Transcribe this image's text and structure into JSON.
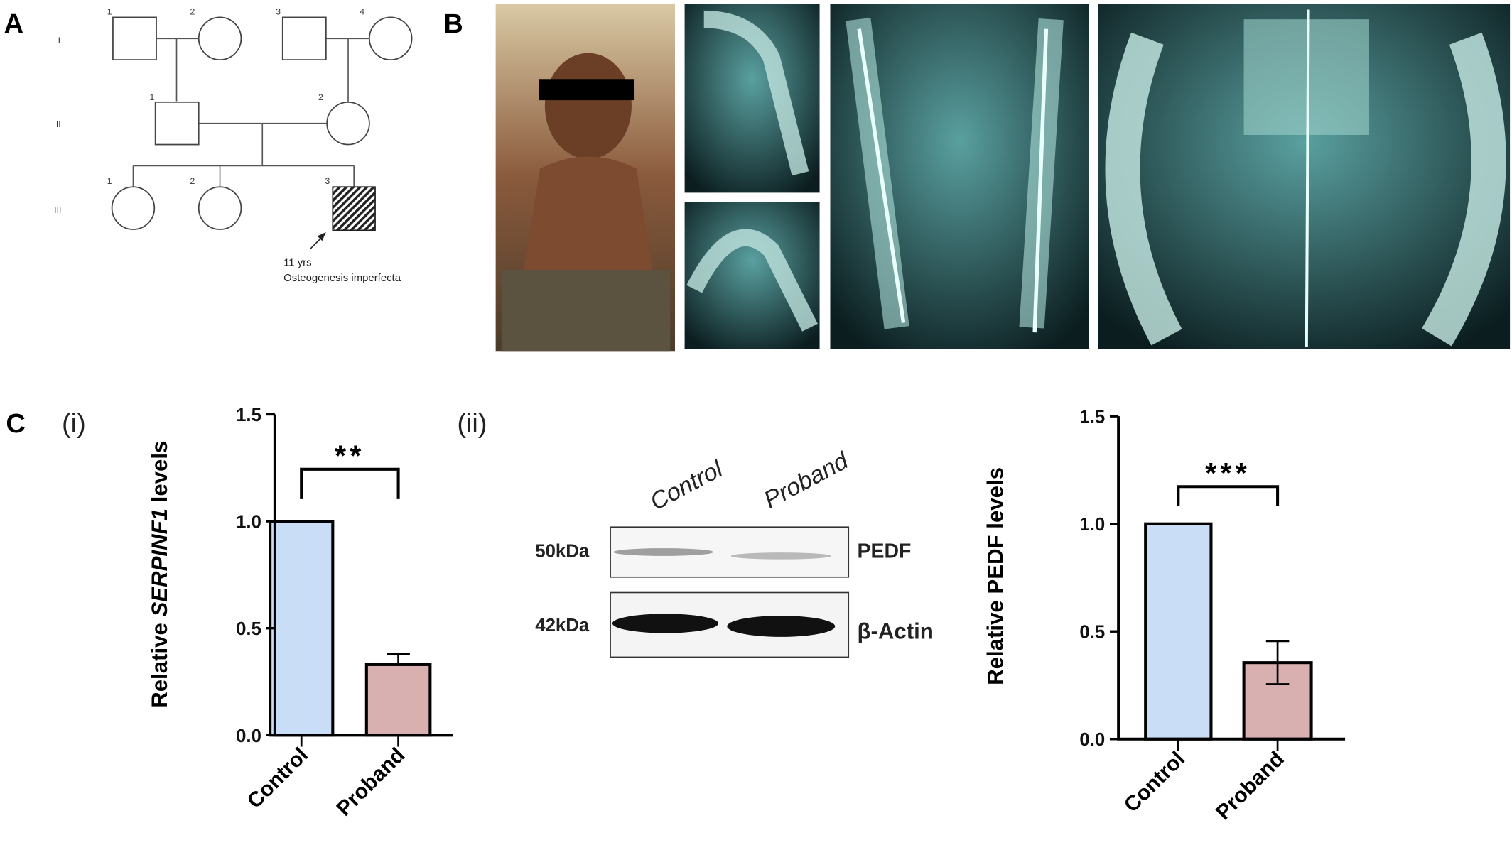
{
  "panels": {
    "a": "A",
    "b": "B",
    "c": "C",
    "c_i": "(i)",
    "c_ii": "(ii)"
  },
  "pedigree": {
    "generations": [
      "I",
      "II",
      "III"
    ],
    "individual_numbers": {
      "gen1": [
        "1",
        "2",
        "3",
        "4"
      ],
      "gen2": [
        "1",
        "2"
      ],
      "gen3": [
        "1",
        "2",
        "3"
      ]
    },
    "proband_age": "11 yrs",
    "proband_diagnosis": "Osteogenesis imperfecta"
  },
  "western_blot": {
    "lanes": [
      "Control",
      "Proband"
    ],
    "rows": [
      {
        "marker": "50kDa",
        "protein": "PEDF"
      },
      {
        "marker": "42kDa",
        "protein": "β-Actin"
      }
    ]
  },
  "colors": {
    "control": "#c9ddf6",
    "proband": "#d8b0b0"
  },
  "chart_data": [
    {
      "type": "bar",
      "title": "",
      "ylabel_prefix": "Relative ",
      "ylabel_italic": "SERPINF1",
      "ylabel_suffix": " levels",
      "categories": [
        "Control",
        "Proband"
      ],
      "values": [
        1.0,
        0.33
      ],
      "errors": [
        0,
        0.05
      ],
      "ylim": [
        0,
        1.5
      ],
      "yticks": [
        "0.0",
        "0.5",
        "1.0",
        "1.5"
      ],
      "significance": "**"
    },
    {
      "type": "bar",
      "title": "",
      "ylabel": "Relative PEDF levels",
      "categories": [
        "Control",
        "Proband"
      ],
      "values": [
        1.0,
        0.355
      ],
      "errors": [
        0,
        0.1
      ],
      "ylim": [
        0,
        1.5
      ],
      "yticks": [
        "0.0",
        "0.5",
        "1.0",
        "1.5"
      ],
      "significance": "***"
    }
  ]
}
